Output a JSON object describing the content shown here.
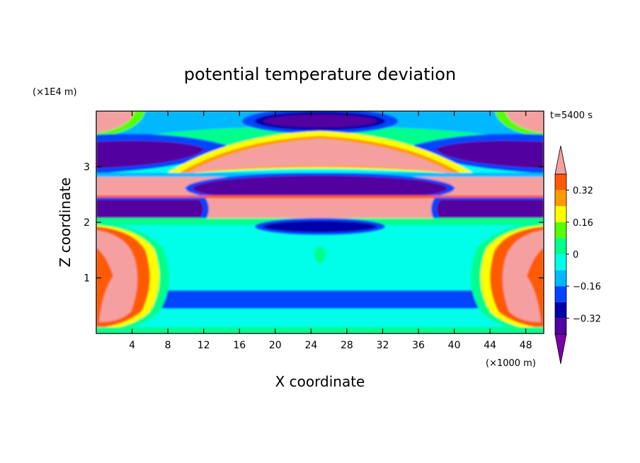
{
  "chart_data": {
    "type": "heatmap",
    "title": "potential temperature deviation",
    "xlabel": "X coordinate",
    "ylabel": "Z coordinate",
    "x_unit": "(×1000 m)",
    "y_unit": "(×1E4 m)",
    "time_label": "t=5400 s",
    "xlim": [
      0,
      50
    ],
    "ylim": [
      0,
      4
    ],
    "x_ticks": [
      4,
      8,
      12,
      16,
      20,
      24,
      28,
      32,
      36,
      40,
      44,
      48
    ],
    "y_ticks": [
      1,
      2,
      3
    ],
    "colorbar": {
      "levels": [
        -0.4,
        -0.32,
        -0.24,
        -0.16,
        -0.08,
        0,
        0.08,
        0.16,
        0.24,
        0.32,
        0.4
      ],
      "labels": [
        "0.32",
        "0.16",
        "0",
        "−0.16",
        "−0.32"
      ],
      "label_values": [
        0.32,
        0.16,
        0,
        -0.16,
        -0.32
      ],
      "colors_low_to_high": [
        "#7a00a8",
        "#5200a0",
        "#0000a8",
        "#0044ff",
        "#00b8ff",
        "#00ffe8",
        "#00ff8c",
        "#55ff00",
        "#ffff00",
        "#ff9a00",
        "#ff5a00",
        "#ff2020",
        "#f5a0a0"
      ]
    },
    "field_regions": [
      {
        "band": "upper boundary",
        "z_range": [
          3.85,
          3.95
        ],
        "value_class": "-0.32 (dark blue) centre; pink corners"
      },
      {
        "band": "upper negative layer",
        "z_range": [
          3.1,
          3.5
        ],
        "value_class": "<-0.4 (purple) at sides"
      },
      {
        "band": "upper positive dome",
        "z_range": [
          3.0,
          3.6
        ],
        "value_class": ">0.4 (pink) centre"
      },
      {
        "band": "mid negative layer",
        "z_range": [
          2.45,
          2.8
        ],
        "value_class": "<-0.4 (purple) centre"
      },
      {
        "band": "mid positive layer",
        "z_range": [
          2.1,
          2.5
        ],
        "value_class": ">0.4 (pink)"
      },
      {
        "band": "lower negative lens",
        "z_range": [
          1.85,
          2.05
        ],
        "value_class": "-0.32 (dark blue)"
      },
      {
        "band": "low neutral region",
        "z_range": [
          0.0,
          1.8
        ],
        "value_class": "-0.08 (cyan)"
      },
      {
        "band": "low negative bar",
        "z_range": [
          0.5,
          0.8
        ],
        "value_class": "-0.16 (blue)"
      },
      {
        "band": "side thermal plumes",
        "z_range": [
          0.1,
          1.9
        ],
        "value_class": ">0.4 (pink) at x≈2 and x≈48"
      }
    ]
  }
}
